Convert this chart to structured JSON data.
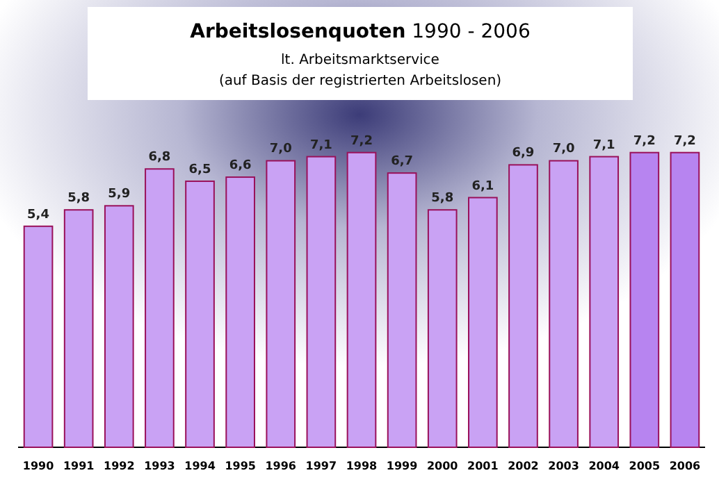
{
  "chart_data": {
    "type": "bar",
    "title": "Arbeitslosenquoten 1990 - 2006",
    "subtitle": "lt. Arbeitsmarktservice\n(auf Basis der registrierten Arbeitslosen)",
    "categories": [
      "1990",
      "1991",
      "1992",
      "1993",
      "1994",
      "1995",
      "1996",
      "1997",
      "1998",
      "1999",
      "2000",
      "2001",
      "2002",
      "2003",
      "2004",
      "2005",
      "2006"
    ],
    "values": [
      5.4,
      5.8,
      5.9,
      6.8,
      6.5,
      6.6,
      7.0,
      7.1,
      7.2,
      6.7,
      5.8,
      6.1,
      6.9,
      7.0,
      7.1,
      7.2,
      7.2
    ],
    "value_labels": [
      "5,4",
      "5,8",
      "5,9",
      "6,8",
      "6,5",
      "6,6",
      "7,0",
      "7,1",
      "7,2",
      "6,7",
      "5,8",
      "6,1",
      "6,9",
      "7,0",
      "7,1",
      "7,2",
      "7,2"
    ],
    "colors": [
      "#c9a2f4",
      "#c9a2f4",
      "#c9a2f4",
      "#c9a2f4",
      "#c9a2f4",
      "#c9a2f4",
      "#c9a2f4",
      "#c9a2f4",
      "#c9a2f4",
      "#c9a2f4",
      "#c9a2f4",
      "#c9a2f4",
      "#c9a2f4",
      "#c9a2f4",
      "#c9a2f4",
      "#b784f0",
      "#b784f0"
    ]
  }
}
